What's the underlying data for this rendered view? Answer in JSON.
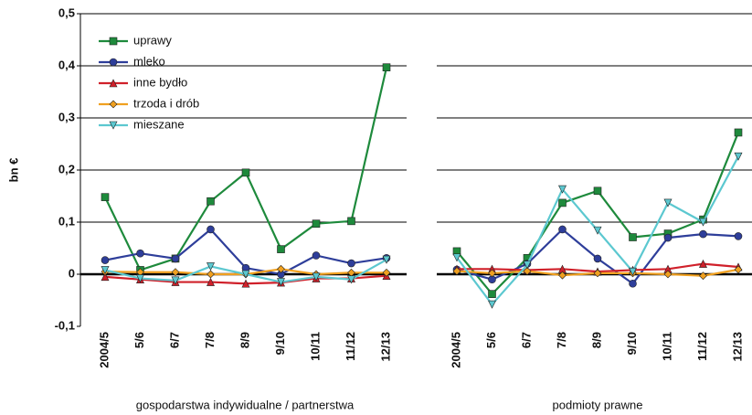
{
  "chart_data": [
    {
      "type": "line",
      "y_label": "bn €",
      "x_label": "gospodarstwa indywidualne / partnerstwa",
      "categories": [
        "2004/5",
        "5/6",
        "6/7",
        "7/8",
        "8/9",
        "9/10",
        "10/11",
        "11/12",
        "12/13"
      ],
      "ylim": [
        -0.1,
        0.5
      ],
      "yticks": [
        {
          "value": -0.1,
          "label": "-0,1"
        },
        0,
        {
          "value": 0.1,
          "label": "0,1"
        },
        {
          "value": 0.2,
          "label": "0,2"
        },
        {
          "value": 0.3,
          "label": "0,3"
        },
        {
          "value": 0.4,
          "label": "0,4"
        },
        {
          "value": 0.5,
          "label": "0,5"
        }
      ],
      "legend": "upper left",
      "series": [
        {
          "name": "uprawy",
          "color": "#1e8a3c",
          "marker": "square",
          "values": [
            0.148,
            0.008,
            0.03,
            0.14,
            0.195,
            0.048,
            0.097,
            0.102,
            0.397
          ]
        },
        {
          "name": "mleko",
          "color": "#2e3e9a",
          "marker": "circle",
          "values": [
            0.027,
            0.04,
            0.03,
            0.086,
            0.012,
            0.0,
            0.036,
            0.021,
            0.031
          ]
        },
        {
          "name": "inne bydło",
          "color": "#d0202a",
          "marker": "triangle",
          "values": [
            -0.005,
            -0.01,
            -0.015,
            -0.015,
            -0.018,
            -0.016,
            -0.008,
            -0.008,
            -0.003
          ]
        },
        {
          "name": "trzoda i drób",
          "color": "#f0a020",
          "marker": "diamond",
          "values": [
            0.005,
            0.004,
            0.004,
            0.0,
            0.0,
            0.01,
            0.0,
            0.003,
            0.003
          ]
        },
        {
          "name": "mieszane",
          "color": "#5cc8d0",
          "marker": "triangle-down",
          "values": [
            0.008,
            -0.008,
            -0.012,
            0.015,
            0.0,
            -0.015,
            -0.005,
            -0.01,
            0.028
          ]
        }
      ]
    },
    {
      "type": "line",
      "x_label": "podmioty prawne",
      "categories": [
        "2004/5",
        "5/6",
        "6/7",
        "7/8",
        "8/9",
        "9/10",
        "10/11",
        "11/12",
        "12/13"
      ],
      "ylim": [
        -0.1,
        0.5
      ],
      "series": [
        {
          "color": "#1e8a3c",
          "marker": "square",
          "values": [
            0.044,
            -0.038,
            0.031,
            0.137,
            0.16,
            0.071,
            0.078,
            0.105,
            0.272
          ]
        },
        {
          "color": "#2e3e9a",
          "marker": "circle",
          "values": [
            0.009,
            -0.01,
            0.02,
            0.086,
            0.03,
            -0.018,
            0.07,
            0.077,
            0.073
          ]
        },
        {
          "color": "#d0202a",
          "marker": "triangle",
          "values": [
            0.01,
            0.01,
            0.008,
            0.01,
            0.005,
            0.008,
            0.01,
            0.02,
            0.014
          ]
        },
        {
          "color": "#f0a020",
          "marker": "diamond",
          "values": [
            0.006,
            0.002,
            0.006,
            -0.002,
            0.002,
            0.002,
            0.0,
            -0.003,
            0.009
          ]
        },
        {
          "color": "#5cc8d0",
          "marker": "triangle-down",
          "values": [
            0.032,
            -0.058,
            0.018,
            0.163,
            0.084,
            0.005,
            0.137,
            0.1,
            0.226
          ]
        }
      ]
    }
  ]
}
